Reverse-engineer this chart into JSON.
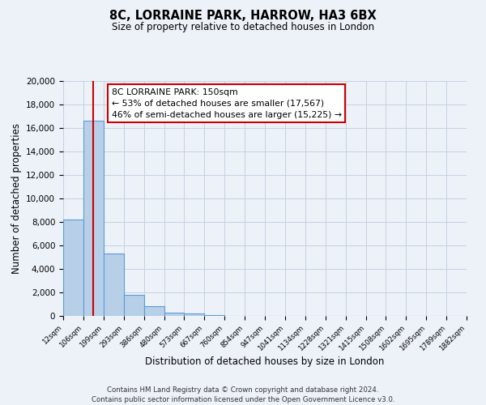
{
  "title": "8C, LORRAINE PARK, HARROW, HA3 6BX",
  "subtitle": "Size of property relative to detached houses in London",
  "xlabel": "Distribution of detached houses by size in London",
  "ylabel": "Number of detached properties",
  "bar_values": [
    8200,
    16600,
    5300,
    1800,
    800,
    300,
    200,
    100,
    0,
    0,
    0,
    0,
    0,
    0,
    0,
    0,
    0,
    0,
    0,
    0
  ],
  "bin_labels": [
    "12sqm",
    "106sqm",
    "199sqm",
    "293sqm",
    "386sqm",
    "480sqm",
    "573sqm",
    "667sqm",
    "760sqm",
    "854sqm",
    "947sqm",
    "1041sqm",
    "1134sqm",
    "1228sqm",
    "1321sqm",
    "1415sqm",
    "1508sqm",
    "1602sqm",
    "1695sqm",
    "1789sqm",
    "1882sqm"
  ],
  "bar_color": "#b8cfe8",
  "bar_edge_color": "#5b9bd5",
  "ylim": [
    0,
    20000
  ],
  "yticks": [
    0,
    2000,
    4000,
    6000,
    8000,
    10000,
    12000,
    14000,
    16000,
    18000,
    20000
  ],
  "vline_color": "#cc0000",
  "annotation_title": "8C LORRAINE PARK: 150sqm",
  "annotation_line1": "← 53% of detached houses are smaller (17,567)",
  "annotation_line2": "46% of semi-detached houses are larger (15,225) →",
  "footer1": "Contains HM Land Registry data © Crown copyright and database right 2024.",
  "footer2": "Contains public sector information licensed under the Open Government Licence v3.0.",
  "background_color": "#edf2f9",
  "plot_bg_color": "#edf2f9",
  "grid_color": "#c5d0e0"
}
